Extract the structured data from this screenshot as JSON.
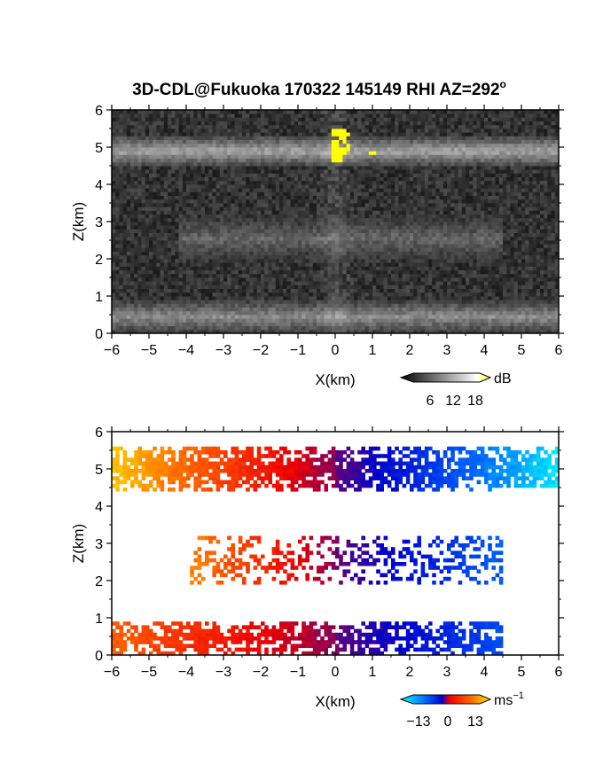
{
  "figure": {
    "title": "3D-CDL@Fukuoka 170322 145149 RHI AZ=292",
    "title_superscript": "o"
  },
  "chart_data": [
    {
      "type": "heatmap",
      "quantity": "backscatter intensity",
      "xlabel": "X(km)",
      "ylabel": "Z(km)",
      "xlim": [
        -6,
        6
      ],
      "ylim": [
        0,
        6
      ],
      "xticks": [
        -6,
        -5,
        -4,
        -3,
        -2,
        -1,
        0,
        1,
        2,
        3,
        4,
        5,
        6
      ],
      "yticks": [
        0,
        1,
        2,
        3,
        4,
        5,
        6
      ],
      "grid": false,
      "colorbar": {
        "label": "dB",
        "ticks": [
          6,
          12,
          18
        ],
        "range": [
          0,
          20
        ],
        "colors": [
          "#000000",
          "#ffffff",
          "#ffff00"
        ]
      },
      "layers": [
        {
          "name": "upper cloud layer",
          "z_range": [
            4.5,
            5.3
          ],
          "x_range": [
            -6,
            6
          ],
          "level_db": 13
        },
        {
          "name": "middle aerosol layer",
          "z_range": [
            1.9,
            3.2
          ],
          "x_range": [
            -4.2,
            4.5
          ],
          "level_db": 8
        },
        {
          "name": "boundary layer",
          "z_range": [
            0,
            0.9
          ],
          "x_range": [
            -6,
            6
          ],
          "level_db": 11
        }
      ],
      "saturated_regions": [
        {
          "x_range": [
            -0.1,
            0.35
          ],
          "z_range": [
            4.6,
            5.5
          ],
          "level_db": 19
        },
        {
          "x_range": [
            0.85,
            1.1
          ],
          "z_range": [
            4.75,
            4.9
          ],
          "level_db": 19
        }
      ]
    },
    {
      "type": "heatmap",
      "quantity": "Doppler velocity",
      "xlabel": "X(km)",
      "ylabel": "Z(km)",
      "xlim": [
        -6,
        6
      ],
      "ylim": [
        0,
        6
      ],
      "xticks": [
        -6,
        -5,
        -4,
        -3,
        -2,
        -1,
        0,
        1,
        2,
        3,
        4,
        5,
        6
      ],
      "yticks": [
        0,
        1,
        2,
        3,
        4,
        5,
        6
      ],
      "grid": false,
      "colorbar": {
        "label": "ms",
        "label_superscript": "−1",
        "ticks": [
          "−13",
          "0",
          "13"
        ],
        "range": [
          -16,
          16
        ],
        "colors": [
          "#00ffff",
          "#0066ff",
          "#0000cc",
          "#ee0000",
          "#ff6600",
          "#ffee00"
        ]
      },
      "layers": [
        {
          "name": "upper cloud layer",
          "z_range": [
            4.4,
            5.6
          ],
          "x_range": [
            -6,
            6
          ],
          "velocity_at_x_min": 14,
          "velocity_at_x_max": -15
        },
        {
          "name": "middle aerosol layer",
          "z_range": [
            1.9,
            3.2
          ],
          "x_range": [
            -3.9,
            4.5
          ],
          "velocity_at_x_min": 11,
          "velocity_at_x_max": -9
        },
        {
          "name": "boundary layer",
          "z_range": [
            0,
            0.9
          ],
          "x_range": [
            -6,
            4.5
          ],
          "velocity_at_x_min": 9,
          "velocity_at_x_max": -8
        }
      ]
    }
  ]
}
